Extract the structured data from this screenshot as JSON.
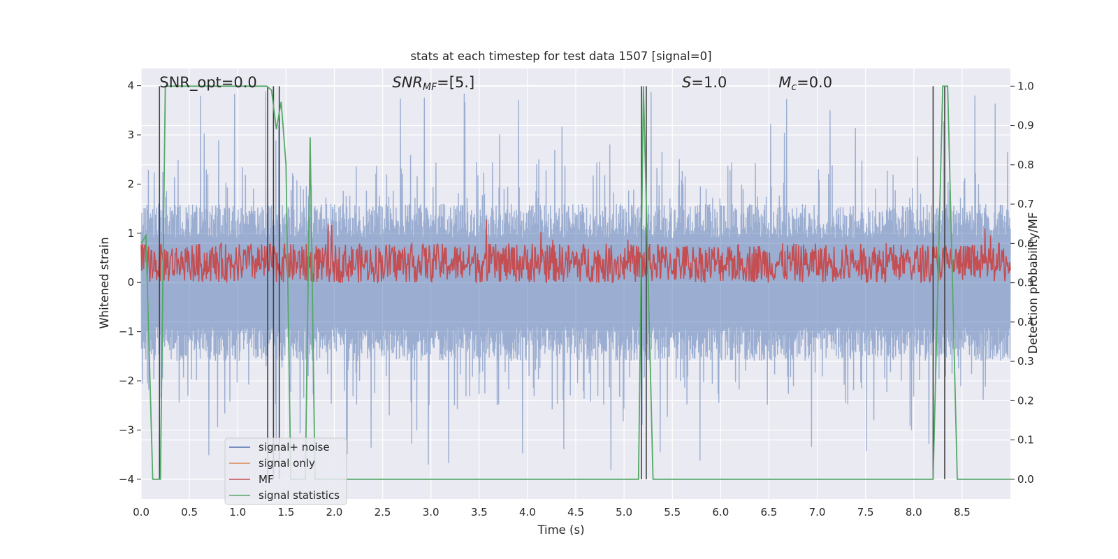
{
  "chart_data": {
    "type": "line",
    "title": "stats at each timestep for test data 1507 [signal=0]",
    "xlabel": "Time (s)",
    "ylabel_left": "Whitened strain",
    "ylabel_right": "Detection probability/MF",
    "xlim": [
      0.0,
      9.0
    ],
    "ylim_left": [
      -4.4,
      4.35
    ],
    "ylim_right": [
      -0.05,
      1.045
    ],
    "xticks": [
      "0.0",
      "0.5",
      "1.0",
      "1.5",
      "2.0",
      "2.5",
      "3.0",
      "3.5",
      "4.0",
      "4.5",
      "5.0",
      "5.5",
      "6.0",
      "6.5",
      "7.0",
      "7.5",
      "8.0",
      "8.5"
    ],
    "yticks_left": [
      "4",
      "3",
      "2",
      "1",
      "0",
      "−1",
      "−2",
      "−3",
      "−4"
    ],
    "yticks_right": [
      "1.0",
      "0.9",
      "0.8",
      "0.7",
      "0.6",
      "0.5",
      "0.4",
      "0.3",
      "0.2",
      "0.1",
      "0.0"
    ],
    "grid": true,
    "legend_position": "lower-left",
    "annotations": [
      {
        "text": "SNR_opt=0.0",
        "x": 0.19,
        "y": 4.05
      },
      {
        "text": "SNR_MF=[5.]",
        "x": 2.6,
        "y": 4.05
      },
      {
        "text": "S=1.0",
        "x": 5.6,
        "y": 4.05
      },
      {
        "text": "M_c=0.0",
        "x": 6.6,
        "y": 4.05
      }
    ],
    "series": [
      {
        "name": "signal+ noise",
        "color": "#4c72b0",
        "axis": "left",
        "noise_envelope": {
          "typical_low": -1.6,
          "typical_high": 1.6,
          "peak_low": -4.0,
          "peak_high": 4.0
        }
      },
      {
        "name": "signal only",
        "color": "#dd8452",
        "axis": "left",
        "values": []
      },
      {
        "name": "MF",
        "color": "#c44e52",
        "axis": "right",
        "typical_range": [
          0.5,
          0.6
        ]
      },
      {
        "name": "signal statistics",
        "color": "#55a868",
        "axis": "right",
        "x": [
          0.0,
          0.05,
          0.12,
          0.2,
          0.25,
          1.3,
          1.35,
          1.4,
          1.45,
          1.5,
          1.55,
          1.7,
          1.75,
          1.8,
          1.85,
          5.15,
          5.2,
          5.3,
          8.2,
          8.3,
          8.35,
          8.45,
          9.0
        ],
        "values": [
          0.6,
          0.62,
          0.0,
          0.0,
          1.0,
          1.0,
          0.99,
          0.89,
          0.96,
          0.8,
          0.0,
          0.0,
          0.87,
          0.0,
          0.0,
          0.0,
          1.0,
          0.0,
          0.0,
          1.0,
          1.0,
          0.0,
          0.0
        ]
      }
    ],
    "vertical_lines": {
      "color": "#404040",
      "x": [
        0.19,
        1.31,
        1.37,
        1.43,
        5.18,
        5.23,
        8.2,
        8.32
      ]
    }
  }
}
